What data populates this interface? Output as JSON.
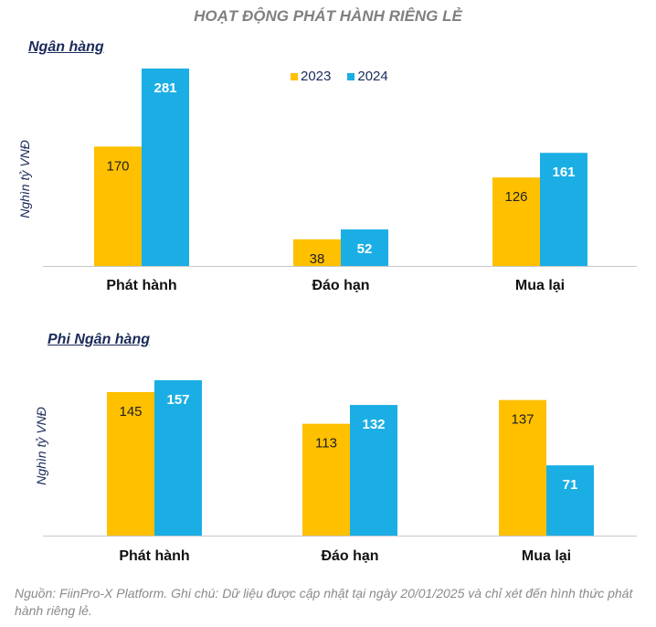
{
  "title": "HOẠT ĐỘNG PHÁT HÀNH RIÊNG LẺ",
  "footnote": "Nguồn: FiinPro-X Platform. Ghi chú: Dữ liệu được cập nhật tại ngày 20/01/2025 và chỉ xét đến  hình thức phát hành riêng lẻ.",
  "colors": {
    "y2023": "#FFC000",
    "y2024": "#1BAEE5",
    "axis": "#c8c8c8"
  },
  "chart_data": [
    {
      "type": "bar",
      "title": "Ngân hàng",
      "ylabel": "Nghìn tỷ VNĐ",
      "legend": [
        "2023",
        "2024"
      ],
      "legend_position": "top-center",
      "categories": [
        "Phát hành",
        "Đáo hạn",
        "Mua lại"
      ],
      "series": [
        {
          "name": "2023",
          "values": [
            170,
            38,
            126
          ]
        },
        {
          "name": "2024",
          "values": [
            281,
            52,
            161
          ]
        }
      ]
    },
    {
      "type": "bar",
      "title": "Phi Ngân hàng",
      "ylabel": "Nghìn tỷ VNĐ",
      "categories": [
        "Phát hành",
        "Đáo hạn",
        "Mua lại"
      ],
      "series": [
        {
          "name": "2023",
          "values": [
            145,
            113,
            137
          ]
        },
        {
          "name": "2024",
          "values": [
            157,
            132,
            71
          ]
        }
      ]
    }
  ]
}
